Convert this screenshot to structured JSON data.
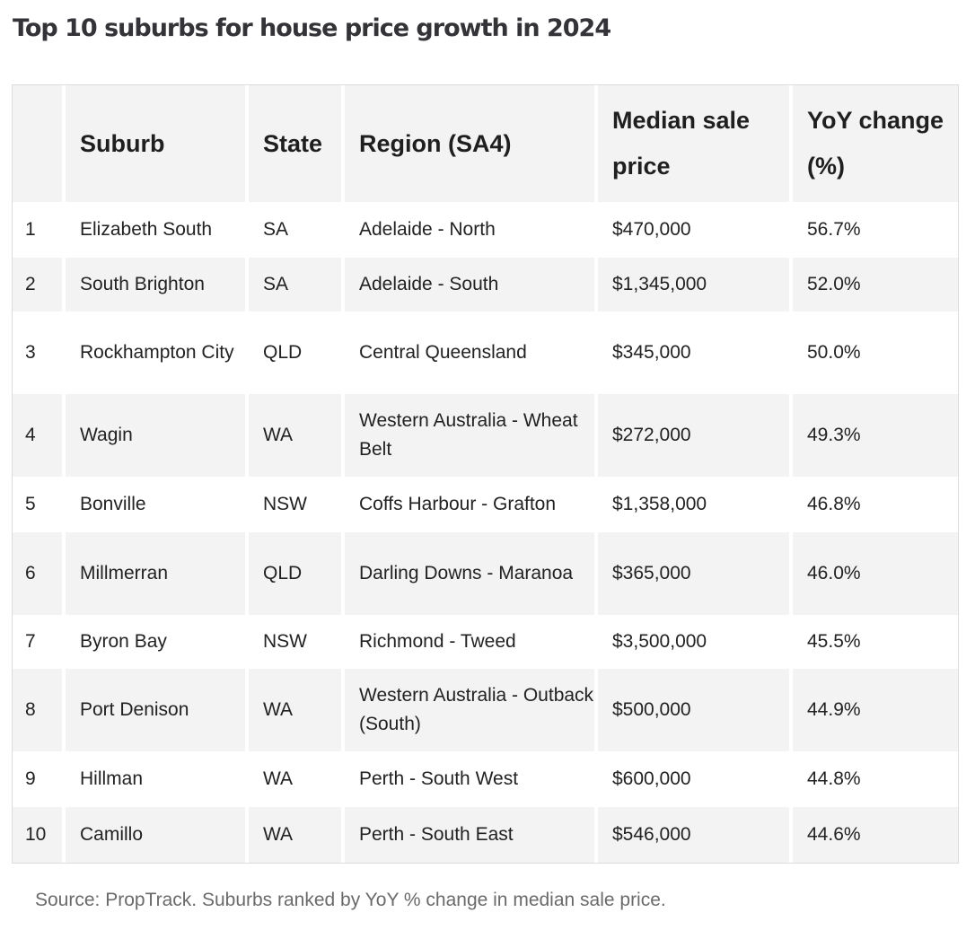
{
  "title": "Top 10 suburbs for house price growth in 2024",
  "table": {
    "headers": [
      "",
      "Suburb",
      "State",
      "Region (SA4)",
      "Median sale price",
      "YoY change (%)"
    ],
    "rows": [
      {
        "rank": "1",
        "suburb": "Elizabeth South",
        "state": "SA",
        "region": "Adelaide - North",
        "price": "$470,000",
        "change": "56.7%"
      },
      {
        "rank": "2",
        "suburb": "South Brighton",
        "state": "SA",
        "region": "Adelaide - South",
        "price": "$1,345,000",
        "change": "52.0%"
      },
      {
        "rank": "3",
        "suburb": "Rockhampton City",
        "state": "QLD",
        "region": "Central Queensland",
        "price": "$345,000",
        "change": "50.0%"
      },
      {
        "rank": "4",
        "suburb": "Wagin",
        "state": "WA",
        "region": "Western Australia - Wheat Belt",
        "price": "$272,000",
        "change": "49.3%"
      },
      {
        "rank": "5",
        "suburb": "Bonville",
        "state": "NSW",
        "region": "Coffs Harbour - Grafton",
        "price": "$1,358,000",
        "change": "46.8%"
      },
      {
        "rank": "6",
        "suburb": "Millmerran",
        "state": "QLD",
        "region": "Darling Downs - Maranoa",
        "price": "$365,000",
        "change": "46.0%"
      },
      {
        "rank": "7",
        "suburb": "Byron Bay",
        "state": "NSW",
        "region": "Richmond - Tweed",
        "price": "$3,500,000",
        "change": "45.5%"
      },
      {
        "rank": "8",
        "suburb": "Port Denison",
        "state": "WA",
        "region": "Western Australia - Outback (South)",
        "price": "$500,000",
        "change": "44.9%"
      },
      {
        "rank": "9",
        "suburb": "Hillman",
        "state": "WA",
        "region": "Perth - South West",
        "price": "$600,000",
        "change": "44.8%"
      },
      {
        "rank": "10",
        "suburb": "Camillo",
        "state": "WA",
        "region": "Perth - South East",
        "price": "$546,000",
        "change": "44.6%"
      }
    ]
  },
  "source": "Source: PropTrack. Suburbs ranked by YoY % change in median sale price."
}
